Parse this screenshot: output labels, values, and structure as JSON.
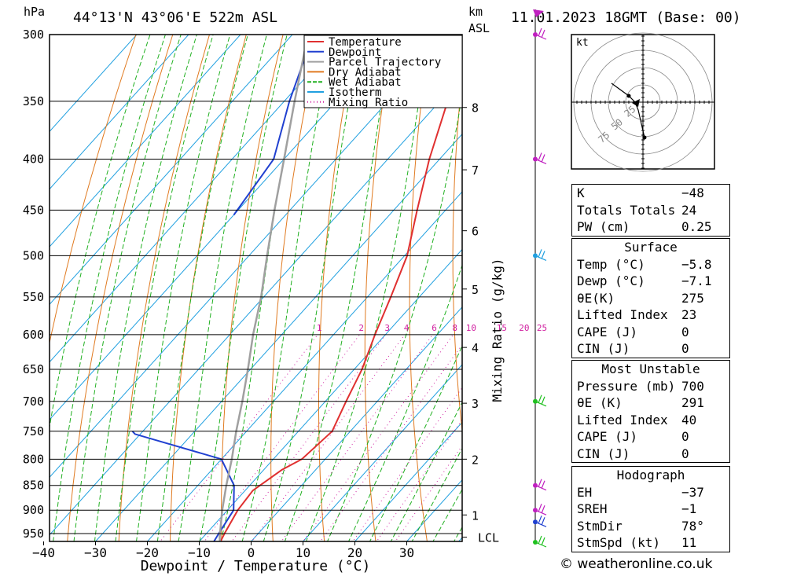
{
  "header": {
    "hpa_label": "hPa",
    "location": "44°13'N  43°06'E  522m  ASL",
    "km_label": "km",
    "asl_label": "ASL",
    "datetime": "11.01.2023  18GMT  (Base: 00)"
  },
  "chart_data": {
    "type": "line",
    "title": "",
    "xlabel": "Dewpoint / Temperature (°C)",
    "ylabel": "hPa",
    "y_scale": "log-pressure (inverted)",
    "xlim": [
      -40,
      40
    ],
    "ylim": [
      970,
      300
    ],
    "pressure_ticks": [
      300,
      350,
      400,
      450,
      500,
      550,
      600,
      650,
      700,
      750,
      800,
      850,
      900,
      950
    ],
    "temperature_ticks": [
      -40,
      -30,
      -20,
      -10,
      0,
      10,
      20,
      30
    ],
    "height_axis": {
      "label": "Mixing Ratio (g/kg)",
      "ticks": [
        {
          "km": "8",
          "p": 355
        },
        {
          "km": "7",
          "p": 410
        },
        {
          "km": "6",
          "p": 472
        },
        {
          "km": "5",
          "p": 540
        },
        {
          "km": "4",
          "p": 618
        },
        {
          "km": "3",
          "p": 703
        },
        {
          "km": "2",
          "p": 800
        },
        {
          "km": "1",
          "p": 910
        }
      ],
      "lcl_label": "LCL",
      "lcl_p": 958
    },
    "mixing_ratio_labels": [
      "1",
      "2",
      "3",
      "4",
      "6",
      "8",
      "10",
      "15",
      "20",
      "25"
    ],
    "legend": {
      "placement": "top-right",
      "entries": [
        {
          "name": "Temperature",
          "color": "#e03030"
        },
        {
          "name": "Dewpoint",
          "color": "#2040d0"
        },
        {
          "name": "Parcel Trajectory",
          "color": "#a0a0a0"
        },
        {
          "name": "Dry Adiabat",
          "color": "#e07a20"
        },
        {
          "name": "Wet Adiabat",
          "color": "#20b020"
        },
        {
          "name": "Isotherm",
          "color": "#20a0e0"
        },
        {
          "name": "Mixing Ratio",
          "color": "#d020a0"
        }
      ]
    },
    "series": [
      {
        "name": "Temperature",
        "points": [
          {
            "p": 970,
            "t": -5.8
          },
          {
            "p": 950,
            "t": -6.5
          },
          {
            "p": 900,
            "t": -8.0
          },
          {
            "p": 860,
            "t": -8.5
          },
          {
            "p": 820,
            "t": -6.5
          },
          {
            "p": 800,
            "t": -4.5
          },
          {
            "p": 750,
            "t": -3.5
          },
          {
            "p": 700,
            "t": -6.0
          },
          {
            "p": 650,
            "t": -8.5
          },
          {
            "p": 600,
            "t": -12.0
          },
          {
            "p": 550,
            "t": -15.5
          },
          {
            "p": 500,
            "t": -19.5
          },
          {
            "p": 450,
            "t": -25.5
          },
          {
            "p": 400,
            "t": -32.0
          },
          {
            "p": 350,
            "t": -38.5
          },
          {
            "p": 300,
            "t": -46.0
          }
        ]
      },
      {
        "name": "Dewpoint",
        "points": [
          {
            "p": 970,
            "t": -7.1
          },
          {
            "p": 950,
            "t": -7.6
          },
          {
            "p": 900,
            "t": -8.8
          },
          {
            "p": 850,
            "t": -13.0
          },
          {
            "p": 800,
            "t": -20.0
          },
          {
            "p": 755,
            "t": -41.0
          },
          {
            "p": 750,
            "t": -42.0
          }
        ]
      },
      {
        "name": "Dewpoint (upper)",
        "points": [
          {
            "p": 455,
            "t": -60.0
          },
          {
            "p": 400,
            "t": -62.0
          },
          {
            "p": 350,
            "t": -69.0
          },
          {
            "p": 300,
            "t": -76.0
          }
        ]
      },
      {
        "name": "Parcel Trajectory",
        "points": [
          {
            "p": 970,
            "t": -5.8
          },
          {
            "p": 958,
            "t": -6.8
          },
          {
            "p": 900,
            "t": -11.0
          },
          {
            "p": 850,
            "t": -14.5
          },
          {
            "p": 800,
            "t": -18.0
          },
          {
            "p": 750,
            "t": -22.0
          },
          {
            "p": 700,
            "t": -26.0
          },
          {
            "p": 650,
            "t": -30.5
          },
          {
            "p": 600,
            "t": -35.5
          },
          {
            "p": 550,
            "t": -40.5
          },
          {
            "p": 500,
            "t": -46.5
          },
          {
            "p": 450,
            "t": -53.0
          },
          {
            "p": 400,
            "t": -60.0
          },
          {
            "p": 350,
            "t": -68.0
          },
          {
            "p": 300,
            "t": -77.0
          }
        ]
      }
    ]
  },
  "wind_profile": {
    "levels": [
      {
        "p": 300,
        "color": "#c020c0"
      },
      {
        "p": 400,
        "color": "#c020c0"
      },
      {
        "p": 500,
        "color": "#20a0e0"
      },
      {
        "p": 700,
        "color": "#20c020"
      },
      {
        "p": 850,
        "color": "#c020c0"
      },
      {
        "p": 900,
        "color": "#c020c0"
      },
      {
        "p": 925,
        "color": "#2040d0"
      },
      {
        "p": 970,
        "color": "#20c020"
      }
    ]
  },
  "hodograph": {
    "unit_label": "kt",
    "ring_labels": [
      "25",
      "50",
      "75"
    ]
  },
  "indices": {
    "rows": [
      {
        "label": "K",
        "value": "-48"
      },
      {
        "label": "Totals Totals",
        "value": "24"
      },
      {
        "label": "PW (cm)",
        "value": "0.25"
      }
    ]
  },
  "surface": {
    "title": "Surface",
    "rows": [
      {
        "label": "Temp (°C)",
        "value": "-5.8"
      },
      {
        "label": "Dewp (°C)",
        "value": "-7.1"
      },
      {
        "label": "θE(K)",
        "value": "275"
      },
      {
        "label": "Lifted Index",
        "value": "23"
      },
      {
        "label": "CAPE (J)",
        "value": "0"
      },
      {
        "label": "CIN (J)",
        "value": "0"
      }
    ]
  },
  "most_unstable": {
    "title": "Most Unstable",
    "rows": [
      {
        "label": "Pressure (mb)",
        "value": "700"
      },
      {
        "label": "θE (K)",
        "value": "291"
      },
      {
        "label": "Lifted Index",
        "value": "40"
      },
      {
        "label": "CAPE (J)",
        "value": "0"
      },
      {
        "label": "CIN (J)",
        "value": "0"
      }
    ]
  },
  "hodo_table": {
    "title": "Hodograph",
    "rows": [
      {
        "label": "EH",
        "value": "-37"
      },
      {
        "label": "SREH",
        "value": "-1"
      },
      {
        "label": "StmDir",
        "value": "78°"
      },
      {
        "label": "StmSpd (kt)",
        "value": "11"
      }
    ]
  },
  "credit": "© weatheronline.co.uk"
}
